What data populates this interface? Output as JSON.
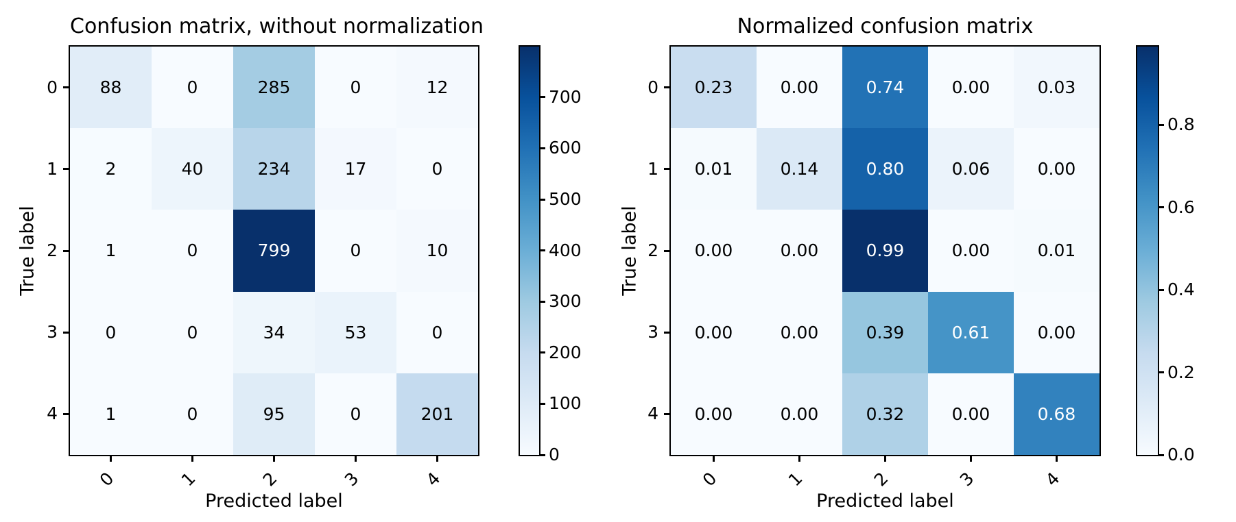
{
  "chart_data": [
    {
      "type": "heatmap",
      "title": "Confusion matrix, without normalization",
      "xlabel": "Predicted label",
      "ylabel": "True label",
      "x_tick_labels": [
        "0",
        "1",
        "2",
        "3",
        "4"
      ],
      "y_tick_labels": [
        "0",
        "1",
        "2",
        "3",
        "4"
      ],
      "matrix": [
        [
          88,
          0,
          285,
          0,
          12
        ],
        [
          2,
          40,
          234,
          17,
          0
        ],
        [
          1,
          0,
          799,
          0,
          10
        ],
        [
          0,
          0,
          34,
          53,
          0
        ],
        [
          1,
          0,
          95,
          0,
          201
        ]
      ],
      "value_format": "int",
      "vmin": 0,
      "vmax": 799,
      "colormap": "Blues",
      "grid": false,
      "legend_position": "colorbar-right",
      "colorbar_ticks": [
        0,
        100,
        200,
        300,
        400,
        500,
        600,
        700
      ],
      "colorbar_tick_labels": [
        "0",
        "100",
        "200",
        "300",
        "400",
        "500",
        "600",
        "700"
      ]
    },
    {
      "type": "heatmap",
      "title": "Normalized confusion matrix",
      "xlabel": "Predicted label",
      "ylabel": "True label",
      "x_tick_labels": [
        "0",
        "1",
        "2",
        "3",
        "4"
      ],
      "y_tick_labels": [
        "0",
        "1",
        "2",
        "3",
        "4"
      ],
      "matrix": [
        [
          0.23,
          0.0,
          0.74,
          0.0,
          0.03
        ],
        [
          0.01,
          0.14,
          0.8,
          0.06,
          0.0
        ],
        [
          0.0,
          0.0,
          0.99,
          0.0,
          0.01
        ],
        [
          0.0,
          0.0,
          0.39,
          0.61,
          0.0
        ],
        [
          0.0,
          0.0,
          0.32,
          0.0,
          0.68
        ]
      ],
      "value_format": ".2f",
      "vmin": 0,
      "vmax": 0.99,
      "colormap": "Blues",
      "grid": false,
      "legend_position": "colorbar-right",
      "colorbar_ticks": [
        0.0,
        0.2,
        0.4,
        0.6,
        0.8
      ],
      "colorbar_tick_labels": [
        "0.0",
        "0.2",
        "0.4",
        "0.6",
        "0.8"
      ]
    }
  ],
  "colors": {
    "background": "#ffffff",
    "spine": "#000000",
    "tick": "#000000",
    "text": "#000000",
    "cell_text_dark": "#000000",
    "cell_text_light": "#ffffff",
    "colormap_stops": [
      "#f7fbff",
      "#deebf7",
      "#c6dbef",
      "#9ecae1",
      "#6baed6",
      "#4292c6",
      "#2171b5",
      "#08519c",
      "#08306b"
    ]
  }
}
